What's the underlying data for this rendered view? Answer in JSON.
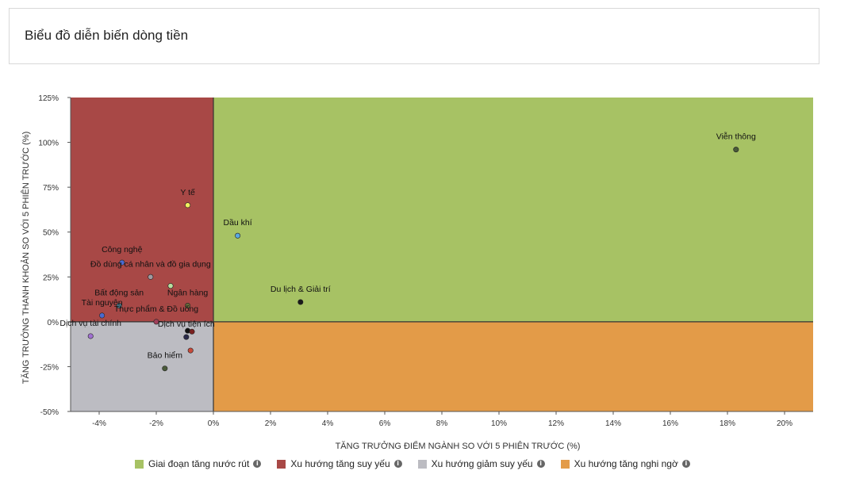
{
  "header": {
    "title": "Biểu đồ diễn biến dòng tiền"
  },
  "chart_data": {
    "type": "scatter",
    "xlabel": "TĂNG TRƯỞNG ĐIỂM NGÀNH SO VỚI 5 PHIÊN TRƯỚC (%)",
    "ylabel": "TĂNG TRƯỞNG THANH KHOẢN SO VỚI 5 PHIÊN TRƯỚC (%)",
    "xlim": [
      -5,
      21
    ],
    "ylim": [
      -50,
      125
    ],
    "xticks": [
      -4,
      -2,
      0,
      2,
      4,
      6,
      8,
      10,
      12,
      14,
      16,
      18,
      20
    ],
    "xtick_labels": [
      "-4%",
      "-2%",
      "0%",
      "2%",
      "4%",
      "6%",
      "8%",
      "10%",
      "12%",
      "14%",
      "16%",
      "18%",
      "20%"
    ],
    "yticks": [
      -50,
      -25,
      0,
      25,
      50,
      75,
      100,
      125
    ],
    "ytick_labels": [
      "-50%",
      "-25%",
      "0%",
      "25%",
      "50%",
      "75%",
      "100%",
      "125%"
    ],
    "quadrants": [
      {
        "label": "Giai đoạn tăng nước rút",
        "color": "#a7c264"
      },
      {
        "label": "Xu hướng tăng suy yếu",
        "color": "#a84846"
      },
      {
        "label": "Xu hướng giảm suy yếu",
        "color": "#bcbcc2"
      },
      {
        "label": "Xu hướng tăng nghi ngờ",
        "color": "#e39b48"
      }
    ],
    "points": [
      {
        "label": "Viễn thông",
        "x": 18.3,
        "y": 96,
        "color": "#4a5a3a"
      },
      {
        "label": "Y tế",
        "x": -0.9,
        "y": 65,
        "color": "#f0f060"
      },
      {
        "label": "Dầu khí",
        "x": 0.85,
        "y": 48,
        "color": "#5aa8e0"
      },
      {
        "label": "Công nghệ",
        "x": -3.2,
        "y": 33,
        "color": "#4a6ad0"
      },
      {
        "label": "Đồ dùng cá nhân và đồ gia dụng",
        "x": -2.2,
        "y": 25,
        "color": "#a09aa0"
      },
      {
        "label": "",
        "x": -1.5,
        "y": 20,
        "color": "#b8e0a0"
      },
      {
        "label": "Du lịch & Giải trí",
        "x": 3.05,
        "y": 11,
        "color": "#1a1a1a"
      },
      {
        "label": "Bất động sản",
        "x": -3.3,
        "y": 9,
        "color": "#4a7a8a"
      },
      {
        "label": "Ngân hàng",
        "x": -0.9,
        "y": 9,
        "color": "#6a6a3a"
      },
      {
        "label": "Tài nguyên",
        "x": -3.9,
        "y": 3.5,
        "color": "#4a6ad0"
      },
      {
        "label": "Thực phẩm & Đồ uống",
        "x": -2.0,
        "y": 0,
        "color": "#a0405a"
      },
      {
        "label": "Dịch vụ tài chính",
        "x": -4.3,
        "y": -8,
        "color": "#a070d0"
      },
      {
        "label": "",
        "x": -0.9,
        "y": -5,
        "color": "#111111"
      },
      {
        "label": "",
        "x": -0.75,
        "y": -5.5,
        "color": "#7a2020"
      },
      {
        "label": "Dịch vụ tiện ích",
        "x": -0.95,
        "y": -8.5,
        "color": "#2a2a4a"
      },
      {
        "label": "",
        "x": -0.8,
        "y": -16,
        "color": "#c84a3a"
      },
      {
        "label": "Bảo hiểm",
        "x": -1.7,
        "y": -26,
        "color": "#4a5a3a"
      }
    ]
  }
}
